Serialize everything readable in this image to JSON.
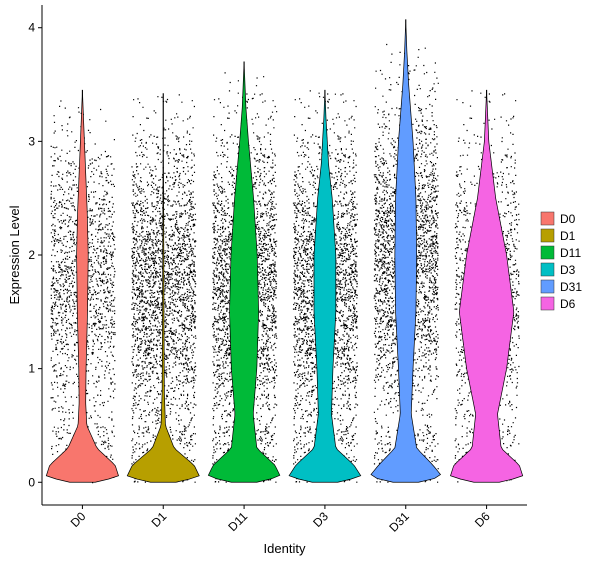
{
  "chart_data": {
    "type": "violin",
    "title": "",
    "xlabel": "Identity",
    "ylabel": "Expression Level",
    "ylim": [
      -0.2,
      4.2
    ],
    "yticks": [
      0,
      1,
      2,
      3,
      4
    ],
    "categories": [
      "D0",
      "D1",
      "D11",
      "D3",
      "D31",
      "D6"
    ],
    "series": [
      {
        "name": "D0",
        "color": "#F8766D",
        "max": 3.45,
        "n_points": 1600,
        "violin": [
          [
            0,
            0.35
          ],
          [
            0.05,
            1.0
          ],
          [
            0.15,
            0.9
          ],
          [
            0.3,
            0.4
          ],
          [
            0.5,
            0.12
          ],
          [
            0.7,
            0.09
          ],
          [
            1.0,
            0.1
          ],
          [
            1.5,
            0.14
          ],
          [
            2.0,
            0.16
          ],
          [
            2.4,
            0.13
          ],
          [
            2.8,
            0.08
          ],
          [
            3.2,
            0.03
          ],
          [
            3.45,
            0
          ]
        ]
      },
      {
        "name": "D1",
        "color": "#B79F00",
        "max": 3.42,
        "n_points": 3200,
        "violin": [
          [
            0,
            0.35
          ],
          [
            0.05,
            1.0
          ],
          [
            0.15,
            0.85
          ],
          [
            0.3,
            0.3
          ],
          [
            0.5,
            0.06
          ],
          [
            0.8,
            0.03
          ],
          [
            1.5,
            0.02
          ],
          [
            2.5,
            0.01
          ],
          [
            3.42,
            0
          ]
        ]
      },
      {
        "name": "D11",
        "color": "#00BA38",
        "max": 3.7,
        "n_points": 6000,
        "violin": [
          [
            0,
            0.35
          ],
          [
            0.05,
            1.0
          ],
          [
            0.15,
            0.85
          ],
          [
            0.3,
            0.35
          ],
          [
            0.6,
            0.25
          ],
          [
            1.0,
            0.35
          ],
          [
            1.5,
            0.4
          ],
          [
            2.0,
            0.36
          ],
          [
            2.5,
            0.26
          ],
          [
            3.0,
            0.12
          ],
          [
            3.3,
            0.05
          ],
          [
            3.7,
            0
          ]
        ]
      },
      {
        "name": "D3",
        "color": "#00BFC4",
        "max": 3.45,
        "n_points": 4500,
        "violin": [
          [
            0,
            0.35
          ],
          [
            0.05,
            1.0
          ],
          [
            0.15,
            0.8
          ],
          [
            0.3,
            0.3
          ],
          [
            0.6,
            0.18
          ],
          [
            1.0,
            0.22
          ],
          [
            1.5,
            0.3
          ],
          [
            2.0,
            0.3
          ],
          [
            2.5,
            0.2
          ],
          [
            2.8,
            0.1
          ],
          [
            3.2,
            0.03
          ],
          [
            3.45,
            0
          ]
        ]
      },
      {
        "name": "D31",
        "color": "#619CFF",
        "max": 4.07,
        "n_points": 11000,
        "violin": [
          [
            0,
            0.35
          ],
          [
            0.05,
            1.0
          ],
          [
            0.15,
            0.75
          ],
          [
            0.3,
            0.3
          ],
          [
            0.6,
            0.15
          ],
          [
            1.0,
            0.2
          ],
          [
            1.5,
            0.28
          ],
          [
            2.0,
            0.3
          ],
          [
            2.5,
            0.28
          ],
          [
            3.0,
            0.2
          ],
          [
            3.5,
            0.08
          ],
          [
            3.8,
            0.03
          ],
          [
            4.07,
            0
          ]
        ]
      },
      {
        "name": "D6",
        "color": "#F564E3",
        "max": 3.45,
        "n_points": 1300,
        "violin": [
          [
            0,
            0.35
          ],
          [
            0.05,
            1.0
          ],
          [
            0.15,
            0.9
          ],
          [
            0.3,
            0.4
          ],
          [
            0.6,
            0.3
          ],
          [
            1.0,
            0.55
          ],
          [
            1.5,
            0.75
          ],
          [
            2.0,
            0.55
          ],
          [
            2.5,
            0.25
          ],
          [
            3.0,
            0.06
          ],
          [
            3.45,
            0
          ]
        ]
      }
    ],
    "legend": "right",
    "grid": false
  }
}
